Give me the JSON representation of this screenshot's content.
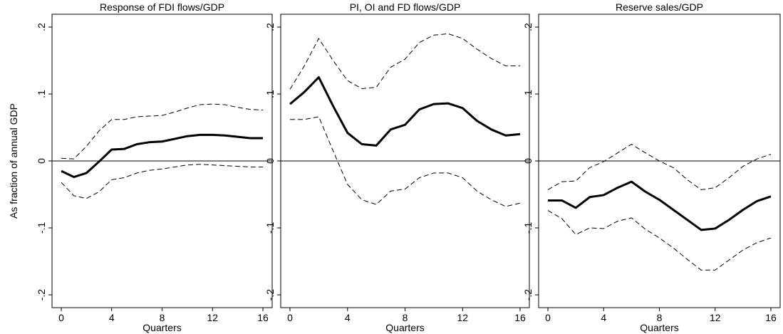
{
  "chart_data": [
    {
      "type": "line",
      "title": "Response of FDI flows/GDP",
      "xlabel": "Quarters",
      "ylabel": "As fraction of annual GDP",
      "x": [
        0,
        1,
        2,
        3,
        4,
        5,
        6,
        7,
        8,
        9,
        10,
        11,
        12,
        13,
        14,
        15,
        16
      ],
      "xlim": [
        0,
        16
      ],
      "xticks": [
        0,
        4,
        8,
        12,
        16
      ],
      "ylim": [
        -0.2,
        0.2
      ],
      "yticks": [
        {
          "value": -0.2,
          "label": "-.2"
        },
        {
          "value": -0.1,
          "label": "-.1"
        },
        0,
        {
          "value": 0.1,
          "label": ".1"
        },
        {
          "value": 0.2,
          "label": ".2"
        }
      ],
      "refline": 0,
      "series": [
        {
          "color": "#000000",
          "style": "solid",
          "values": [
            -0.015,
            -0.024,
            -0.018,
            -0.001,
            0.017,
            0.018,
            0.025,
            0.028,
            0.029,
            0.033,
            0.037,
            0.039,
            0.039,
            0.038,
            0.036,
            0.034,
            0.034
          ]
        },
        {
          "color": "#000000",
          "style": "dashed",
          "values": [
            0.004,
            0.003,
            0.022,
            0.045,
            0.062,
            0.062,
            0.066,
            0.067,
            0.068,
            0.073,
            0.079,
            0.084,
            0.085,
            0.084,
            0.08,
            0.077,
            0.076
          ]
        },
        {
          "color": "#000000",
          "style": "dashed",
          "values": [
            -0.032,
            -0.052,
            -0.056,
            -0.046,
            -0.028,
            -0.025,
            -0.018,
            -0.014,
            -0.012,
            -0.009,
            -0.006,
            -0.005,
            -0.006,
            -0.007,
            -0.008,
            -0.009,
            -0.009
          ]
        }
      ]
    },
    {
      "type": "line",
      "title": "PI, OI and FD flows/GDP",
      "xlabel": "Quarters",
      "x": [
        0,
        1,
        2,
        3,
        4,
        5,
        6,
        7,
        8,
        9,
        10,
        11,
        12,
        13,
        14,
        15,
        16
      ],
      "xlim": [
        0,
        16
      ],
      "xticks": [
        0,
        4,
        8,
        12,
        16
      ],
      "ylim": [
        -0.2,
        0.2
      ],
      "yticks": [
        {
          "value": -0.2,
          "label": "-.2"
        },
        {
          "value": -0.1,
          "label": "-.1"
        },
        0,
        {
          "value": 0.1,
          "label": ".1"
        },
        {
          "value": 0.2,
          "label": ".2"
        }
      ],
      "refline": 0,
      "series": [
        {
          "color": "#000000",
          "style": "solid",
          "values": [
            0.085,
            0.103,
            0.125,
            0.082,
            0.042,
            0.025,
            0.023,
            0.047,
            0.054,
            0.077,
            0.085,
            0.086,
            0.079,
            0.06,
            0.047,
            0.038,
            0.04
          ]
        },
        {
          "color": "#000000",
          "style": "dashed",
          "values": [
            0.107,
            0.142,
            0.183,
            0.15,
            0.12,
            0.108,
            0.11,
            0.14,
            0.152,
            0.177,
            0.188,
            0.19,
            0.183,
            0.167,
            0.153,
            0.142,
            0.142
          ]
        },
        {
          "color": "#000000",
          "style": "dashed",
          "values": [
            0.062,
            0.062,
            0.066,
            0.015,
            -0.035,
            -0.058,
            -0.065,
            -0.045,
            -0.042,
            -0.025,
            -0.018,
            -0.018,
            -0.025,
            -0.045,
            -0.058,
            -0.068,
            -0.063
          ]
        }
      ]
    },
    {
      "type": "line",
      "title": "Reserve sales/GDP",
      "xlabel": "Quarters",
      "x": [
        0,
        1,
        2,
        3,
        4,
        5,
        6,
        7,
        8,
        9,
        10,
        11,
        12,
        13,
        14,
        15,
        16
      ],
      "xlim": [
        0,
        16
      ],
      "xticks": [
        0,
        4,
        8,
        12,
        16
      ],
      "ylim": [
        -0.2,
        0.2
      ],
      "yticks": [
        {
          "value": -0.2,
          "label": "-.2"
        },
        {
          "value": -0.1,
          "label": "-.1"
        },
        0,
        {
          "value": 0.1,
          "label": ".1"
        },
        {
          "value": 0.2,
          "label": ".2"
        }
      ],
      "refline": 0,
      "series": [
        {
          "color": "#000000",
          "style": "solid",
          "values": [
            -0.059,
            -0.059,
            -0.07,
            -0.054,
            -0.051,
            -0.04,
            -0.031,
            -0.046,
            -0.058,
            -0.073,
            -0.088,
            -0.103,
            -0.101,
            -0.088,
            -0.073,
            -0.06,
            -0.053
          ]
        },
        {
          "color": "#000000",
          "style": "dashed",
          "values": [
            -0.043,
            -0.031,
            -0.03,
            -0.01,
            -0.001,
            0.012,
            0.025,
            0.012,
            0.0,
            -0.01,
            -0.028,
            -0.043,
            -0.04,
            -0.025,
            -0.008,
            0.003,
            0.01
          ]
        },
        {
          "color": "#000000",
          "style": "dashed",
          "values": [
            -0.074,
            -0.086,
            -0.11,
            -0.1,
            -0.101,
            -0.09,
            -0.085,
            -0.102,
            -0.115,
            -0.13,
            -0.147,
            -0.163,
            -0.163,
            -0.148,
            -0.133,
            -0.122,
            -0.115
          ]
        }
      ]
    }
  ]
}
